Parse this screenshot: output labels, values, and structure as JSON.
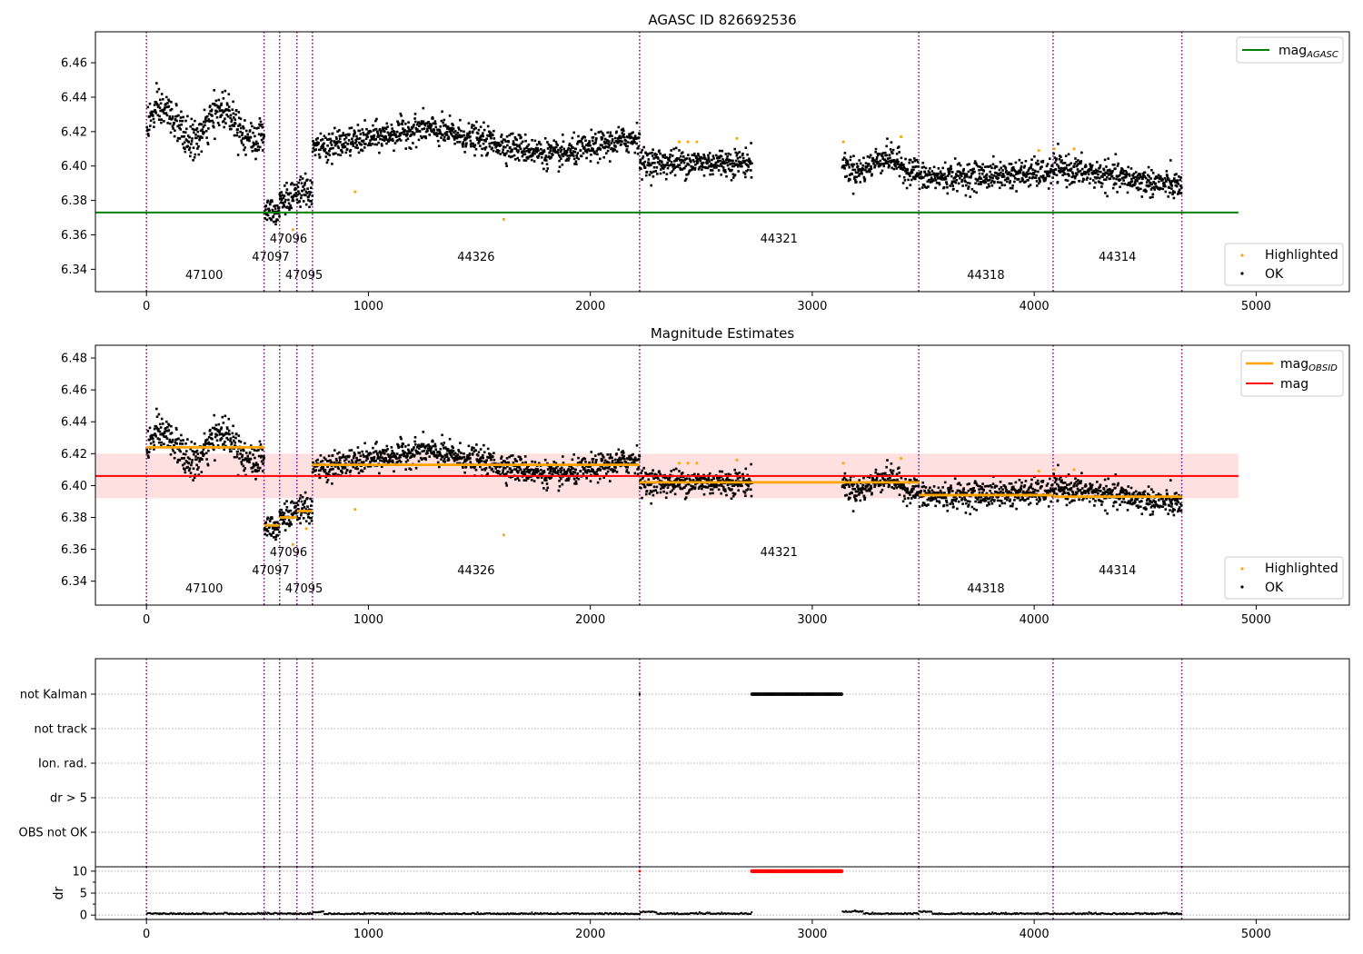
{
  "chart_data": [
    {
      "type": "scatter",
      "title": "AGASC ID 826692536",
      "xlim": [
        -230,
        5420
      ],
      "ylim": [
        6.327,
        6.478
      ],
      "xticks": [
        "0",
        "1000",
        "2000",
        "3000",
        "4000",
        "5000"
      ],
      "yticks": [
        "6.34",
        "6.36",
        "6.38",
        "6.40",
        "6.42",
        "6.44",
        "6.46"
      ],
      "legend_upper": {
        "position": "upper-right",
        "entries": [
          {
            "label": "mag",
            "sub": "AGASC",
            "color": "#008000"
          }
        ]
      },
      "legend_lower": {
        "position": "lower-right",
        "entries": [
          {
            "label": "Highlighted",
            "color": "#ffa500"
          },
          {
            "label": "OK",
            "color": "#000000"
          }
        ]
      },
      "reference_line": {
        "name": "mag_AGASC",
        "y": 6.373,
        "x_range": [
          -230,
          4920
        ],
        "color": "#008000"
      }
    },
    {
      "type": "scatter",
      "title": "Magnitude Estimates",
      "xlim": [
        -230,
        5420
      ],
      "ylim": [
        6.325,
        6.488
      ],
      "xticks": [
        "0",
        "1000",
        "2000",
        "3000",
        "4000",
        "5000"
      ],
      "yticks": [
        "6.34",
        "6.36",
        "6.38",
        "6.40",
        "6.42",
        "6.44",
        "6.46",
        "6.48"
      ],
      "legend_upper": {
        "position": "upper-right",
        "entries": [
          {
            "label": "mag",
            "sub": "OBSID",
            "color": "#ffa500"
          },
          {
            "label": "mag",
            "sub": "",
            "color": "#ff0000"
          }
        ]
      },
      "legend_lower": {
        "position": "lower-right",
        "entries": [
          {
            "label": "Highlighted",
            "color": "#ffa500"
          },
          {
            "label": "OK",
            "color": "#000000"
          }
        ]
      },
      "mean_line": {
        "name": "mag",
        "y": 6.406,
        "band": [
          6.392,
          6.42
        ],
        "x_range": [
          -230,
          4920
        ],
        "color": "#ff0000"
      },
      "obsid_means": [
        {
          "obsid": "47100",
          "x": [
            0,
            530
          ],
          "y": 6.424
        },
        {
          "obsid": "47097",
          "x": [
            530,
            600
          ],
          "y": 6.375
        },
        {
          "obsid": "47096",
          "x": [
            600,
            678
          ],
          "y": 6.38
        },
        {
          "obsid": "47095",
          "x": [
            678,
            748
          ],
          "y": 6.384
        },
        {
          "obsid": "44326",
          "x": [
            748,
            2222
          ],
          "y": 6.413
        },
        {
          "obsid": "44321",
          "x": [
            2222,
            3480
          ],
          "y": 6.402
        },
        {
          "obsid": "44318",
          "x": [
            3480,
            4085
          ],
          "y": 6.394
        },
        {
          "obsid": "44314",
          "x": [
            4085,
            4665
          ],
          "y": 6.393
        }
      ]
    },
    {
      "type": "scatter",
      "xlim": [
        -230,
        5420
      ],
      "xticks": [
        "0",
        "1000",
        "2000",
        "3000",
        "4000",
        "5000"
      ],
      "categories": [
        "not Kalman",
        "not track",
        "Ion. rad.",
        "dr > 5",
        "OBS not OK"
      ],
      "flag_ranges": [
        {
          "category": "not Kalman",
          "x": [
            2728,
            3135
          ]
        }
      ]
    },
    {
      "type": "scatter",
      "xlim": [
        -230,
        5420
      ],
      "ylim": [
        -1,
        11
      ],
      "ylabel": "dr",
      "xticks": [
        "0",
        "1000",
        "2000",
        "3000",
        "4000",
        "5000"
      ],
      "yticks": [
        "0",
        "5",
        "10"
      ],
      "high_dr_range": {
        "x": [
          2728,
          3135
        ],
        "y": 10
      }
    }
  ],
  "obsids": [
    {
      "label": "47100",
      "start": 0,
      "end": 530,
      "label_x": 260,
      "label_row": 2
    },
    {
      "label": "47097",
      "start": 530,
      "end": 600,
      "label_x": 560,
      "label_row": 1
    },
    {
      "label": "47096",
      "start": 600,
      "end": 678,
      "label_x": 640,
      "label_row": 0
    },
    {
      "label": "47095",
      "start": 678,
      "end": 748,
      "label_x": 710,
      "label_row": 2
    },
    {
      "label": "44326",
      "start": 748,
      "end": 2222,
      "label_x": 1485,
      "label_row": 1
    },
    {
      "label": "44321",
      "start": 2222,
      "end": 3480,
      "label_x": 2850,
      "label_row": 0
    },
    {
      "label": "44318",
      "start": 3480,
      "end": 4085,
      "label_x": 3782,
      "label_row": 2
    },
    {
      "label": "44314",
      "start": 4085,
      "end": 4665,
      "label_x": 4375,
      "label_row": 1
    }
  ],
  "highlighted_points": [
    [
      940,
      6.385
    ],
    [
      1610,
      6.369
    ],
    [
      660,
      6.363
    ],
    [
      720,
      6.373
    ],
    [
      2400,
      6.414
    ],
    [
      2440,
      6.414
    ],
    [
      2480,
      6.414
    ],
    [
      2660,
      6.416
    ],
    [
      3140,
      6.414
    ],
    [
      3400,
      6.417
    ],
    [
      4020,
      6.409
    ],
    [
      4090,
      6.41
    ],
    [
      4180,
      6.41
    ]
  ],
  "colors": {
    "ok": "#000000",
    "highlighted": "#ffa500",
    "agasc": "#008000",
    "obsid_mean": "#ffa500",
    "mean": "#ff0000",
    "obsid_line": "#800080"
  }
}
